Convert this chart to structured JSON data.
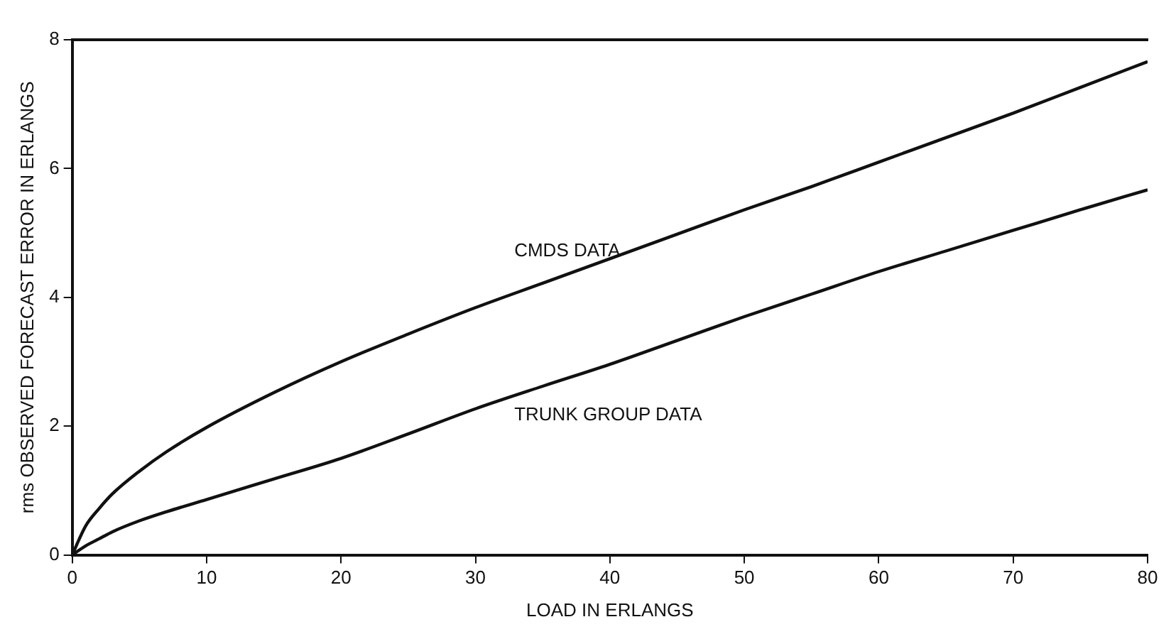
{
  "chart_data": {
    "type": "line",
    "xlabel": "LOAD IN ERLANGS",
    "ylabel": "rms OBSERVED FORECAST ERROR IN ERLANGS",
    "xlim": [
      0,
      80
    ],
    "xticks": [
      0,
      10,
      20,
      30,
      40,
      50,
      60,
      70,
      80
    ],
    "ylim": [
      0,
      8
    ],
    "yticks": [
      0,
      2,
      4,
      6,
      8
    ],
    "grid": false,
    "legend": false,
    "marker": "none",
    "line_style": "solid",
    "series": [
      {
        "name": "CMDS DATA",
        "color": "#111111",
        "x": [
          0,
          1,
          2,
          3,
          5,
          7,
          10,
          15,
          20,
          25,
          30,
          35,
          40,
          45,
          50,
          55,
          60,
          65,
          70,
          75,
          80
        ],
        "values": [
          0,
          0.45,
          0.72,
          0.95,
          1.3,
          1.6,
          1.98,
          2.52,
          3.0,
          3.43,
          3.84,
          4.22,
          4.6,
          4.98,
          5.36,
          5.72,
          6.1,
          6.48,
          6.86,
          7.26,
          7.66
        ]
      },
      {
        "name": "TRUNK GROUP DATA",
        "color": "#111111",
        "x": [
          0,
          1,
          2,
          3,
          5,
          7,
          10,
          15,
          20,
          25,
          30,
          35,
          40,
          45,
          50,
          55,
          60,
          65,
          70,
          75,
          80
        ],
        "values": [
          0,
          0.14,
          0.25,
          0.36,
          0.53,
          0.67,
          0.86,
          1.18,
          1.5,
          1.88,
          2.27,
          2.62,
          2.96,
          3.33,
          3.7,
          4.05,
          4.4,
          4.72,
          5.04,
          5.36,
          5.67
        ]
      }
    ]
  }
}
